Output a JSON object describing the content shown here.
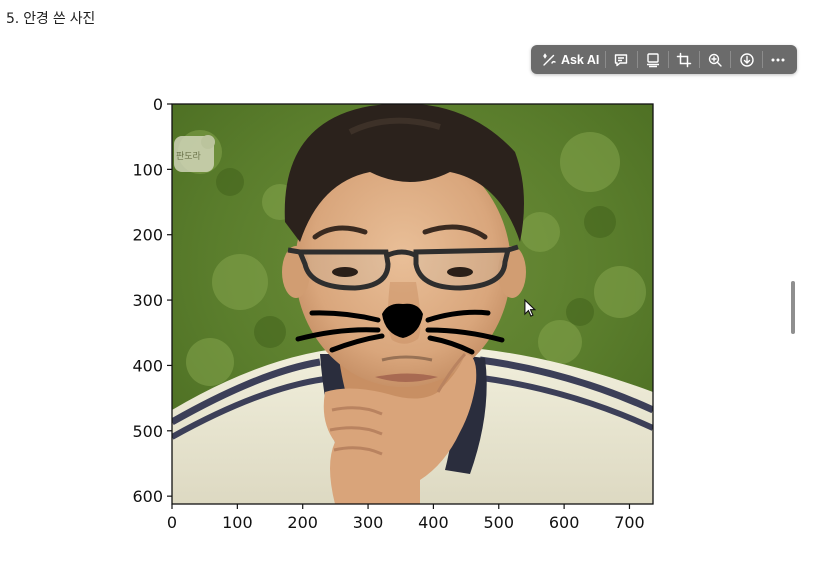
{
  "page": {
    "heading": "5. 안경 쓴 사진"
  },
  "toolbar": {
    "ask_ai_label": "Ask AI",
    "icons": [
      "sparkle-pen-icon",
      "comment-icon",
      "caption-icon",
      "crop-icon",
      "zoom-in-icon",
      "download-icon",
      "more-icon"
    ]
  },
  "figure": {
    "axes": {
      "x_ticks": [
        0,
        100,
        200,
        300,
        400,
        500,
        600,
        700
      ],
      "y_ticks": [
        0,
        100,
        200,
        300,
        400,
        500,
        600
      ],
      "xlim": [
        0,
        736
      ],
      "ylim": [
        612,
        0
      ],
      "grid": false
    },
    "image": {
      "subject": "man with glasses, hand on chin, drawn cat nose and whiskers",
      "watermark_text": "판도라"
    },
    "cursor": {
      "x": 540,
      "y": 300
    }
  }
}
